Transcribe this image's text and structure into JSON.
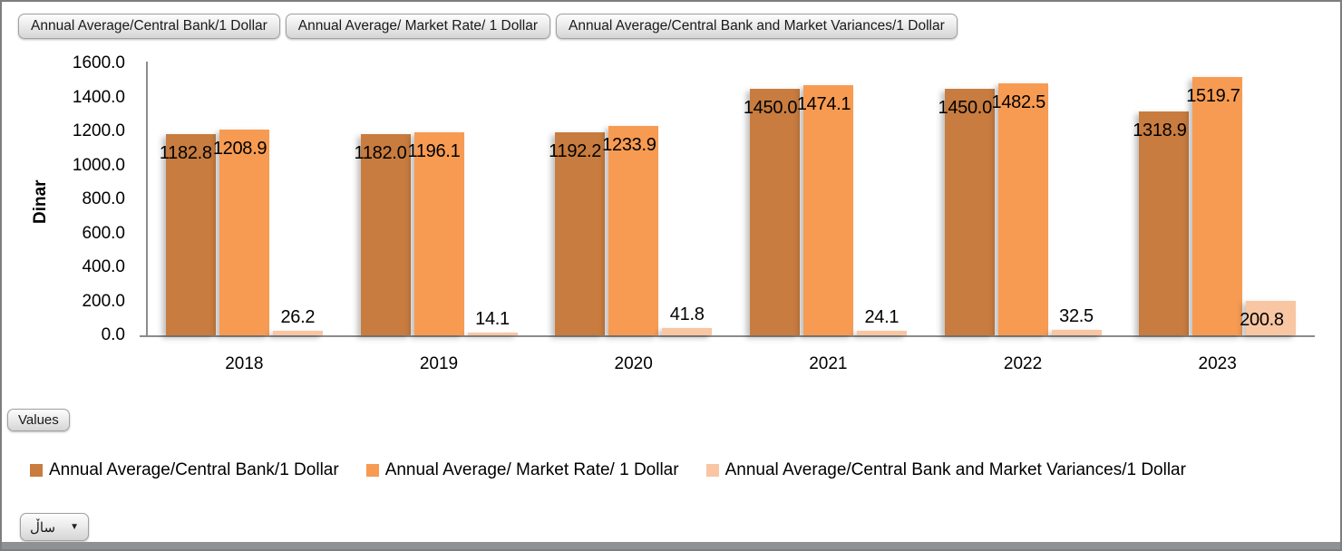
{
  "window": {
    "background": "#ffffff",
    "border_color": "#7c7e80",
    "bottom_bar_color": "#8f9193"
  },
  "toolbar": {
    "field_buttons": [
      {
        "label": "Annual Average/Central Bank/1 Dollar"
      },
      {
        "label": "Annual Average/ Market Rate/ 1 Dollar"
      },
      {
        "label": "Annual Average/Central Bank and Market Variances/1 Dollar"
      }
    ]
  },
  "filters": {
    "values_button_label": "Values",
    "year_dropdown": {
      "label": "ساڵ",
      "arrow_icon": "chevron-down"
    }
  },
  "chart_data": {
    "type": "bar",
    "title": "",
    "xlabel": "",
    "ylabel": "Dinar",
    "ylim": [
      0,
      1600
    ],
    "ytick_step": 200,
    "ytick_format": "one_decimal",
    "grid": false,
    "legend_position": "bottom",
    "categories": [
      "2018",
      "2019",
      "2020",
      "2021",
      "2022",
      "2023"
    ],
    "series": [
      {
        "name": "Annual Average/Central Bank/1 Dollar",
        "color": "#c87c3f",
        "values": [
          1182.8,
          1182.0,
          1192.2,
          1450.0,
          1450.0,
          1318.9
        ]
      },
      {
        "name": "Annual Average/ Market Rate/ 1 Dollar",
        "color": "#f79b52",
        "values": [
          1208.9,
          1196.1,
          1233.9,
          1474.1,
          1482.5,
          1519.7
        ]
      },
      {
        "name": "Annual Average/Central Bank and Market Variances/1 Dollar",
        "color": "#f8c6a3",
        "values": [
          26.2,
          14.1,
          41.8,
          24.1,
          32.5,
          200.8
        ]
      }
    ]
  }
}
